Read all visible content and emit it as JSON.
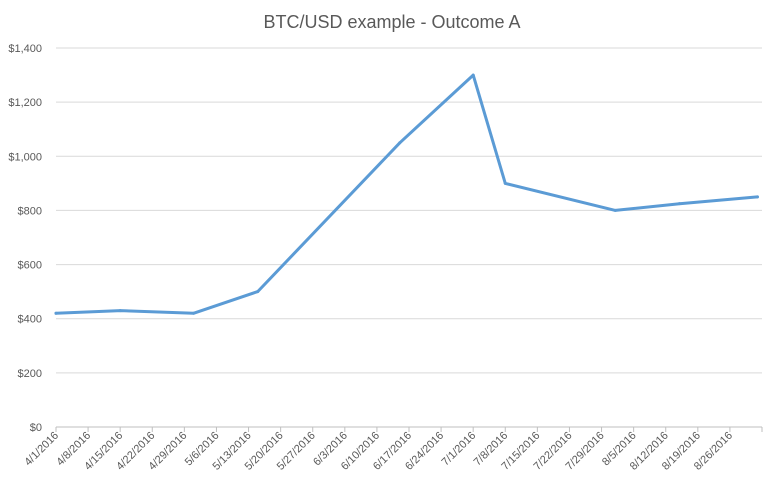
{
  "chart_data": {
    "type": "line",
    "title": "BTC/USD example - Outcome A",
    "xlabel": "",
    "ylabel": "",
    "ylim": [
      0,
      1400
    ],
    "y_ticks": [
      0,
      200,
      400,
      600,
      800,
      1000,
      1200,
      1400
    ],
    "y_tick_labels": [
      "$0",
      "$200",
      "$400",
      "$600",
      "$800",
      "$1,000",
      "$1,200",
      "$1,400"
    ],
    "x_tick_labels": [
      "4/1/2016",
      "4/8/2016",
      "4/15/2016",
      "4/22/2016",
      "4/29/2016",
      "5/6/2016",
      "5/13/2016",
      "5/20/2016",
      "5/27/2016",
      "6/3/2016",
      "6/10/2016",
      "6/17/2016",
      "6/24/2016",
      "7/1/2016",
      "7/8/2016",
      "7/15/2016",
      "7/22/2016",
      "7/29/2016",
      "8/5/2016",
      "8/12/2016",
      "8/19/2016",
      "8/26/2016"
    ],
    "xlim": [
      "2016-04-01",
      "2016-09-02"
    ],
    "grid": true,
    "legend": "none",
    "series": [
      {
        "color": "#5b9bd5",
        "x": [
          "2016-04-01",
          "2016-04-15",
          "2016-05-01",
          "2016-05-15",
          "2016-06-15",
          "2016-07-01",
          "2016-07-08",
          "2016-08-01",
          "2016-08-15",
          "2016-09-01"
        ],
        "y": [
          420,
          430,
          420,
          500,
          1050,
          1300,
          900,
          800,
          825,
          850
        ]
      }
    ]
  }
}
